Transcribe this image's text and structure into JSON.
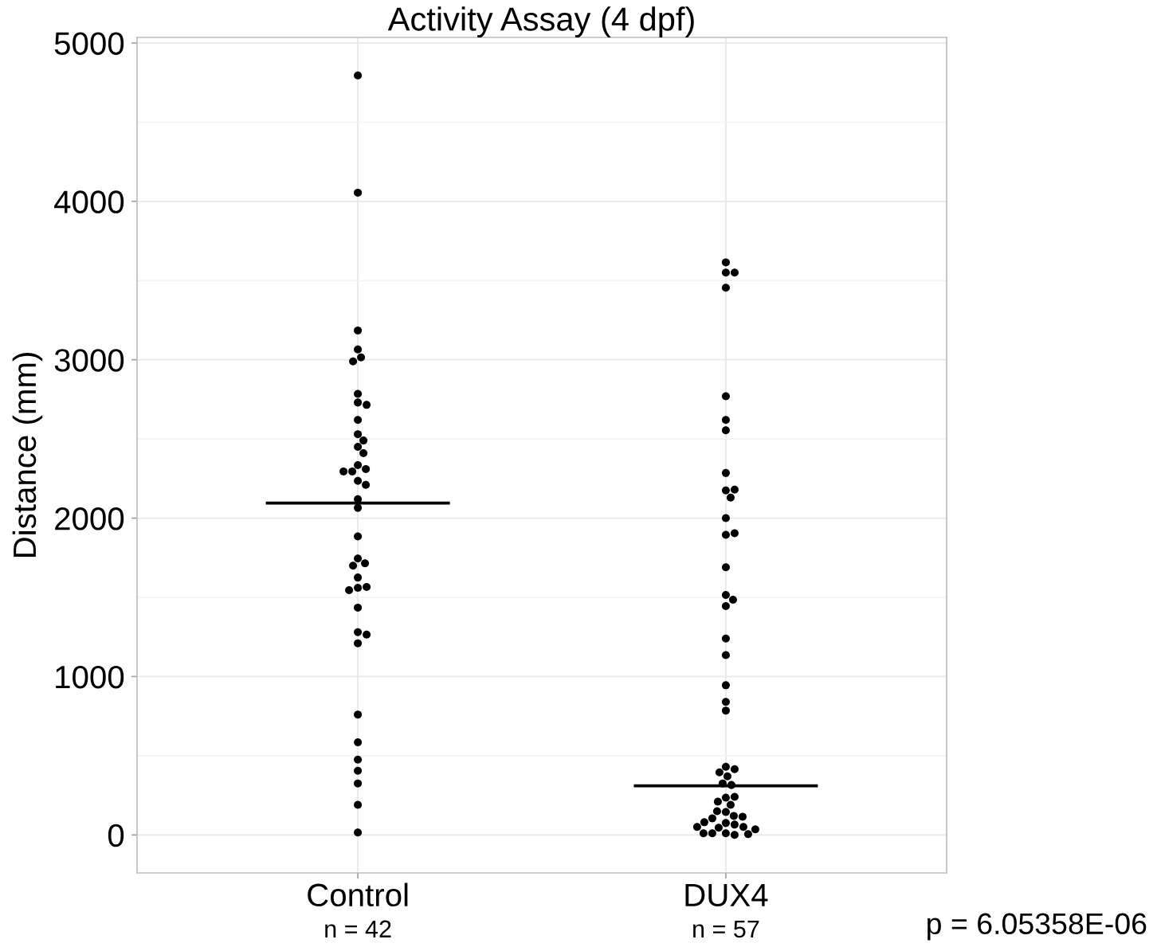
{
  "chart_data": {
    "type": "scatter",
    "title": "Activity Assay (4 dpf)",
    "ylabel": "Distance (mm)",
    "categories": [
      "Control",
      "DUX4"
    ],
    "ylim": [
      -240,
      5035
    ],
    "yticks": [
      0,
      {
        "value": 500,
        "label": null
      },
      1000,
      {
        "value": 1500,
        "label": null
      },
      2000,
      {
        "value": 2500,
        "label": null
      },
      3000,
      {
        "value": 3500,
        "label": null
      },
      4000,
      {
        "value": 4500,
        "label": null
      },
      5000
    ],
    "grid": true,
    "marker": "circle",
    "series": [
      {
        "color": "#000000",
        "x": [
          "Control",
          "Control",
          "Control",
          "Control",
          "Control",
          "Control",
          "Control",
          "Control",
          "Control",
          "Control",
          "Control",
          "Control",
          "Control",
          "Control",
          "Control",
          "Control",
          "Control",
          "Control",
          "Control",
          "Control",
          "Control",
          "Control",
          "Control",
          "Control",
          "Control",
          "Control",
          "Control",
          "Control",
          "Control",
          "Control",
          "Control",
          "Control",
          "Control",
          "Control",
          "Control",
          "Control",
          "Control",
          "Control",
          "Control",
          "Control",
          "Control"
        ],
        "values": [
          4795,
          4055,
          3185,
          3065,
          3015,
          2990,
          2785,
          2730,
          2715,
          2620,
          2530,
          2490,
          2450,
          2410,
          2335,
          2310,
          2295,
          2295,
          2235,
          2210,
          2120,
          2065,
          1885,
          1745,
          1715,
          1700,
          1625,
          1560,
          1565,
          1545,
          1435,
          1280,
          1265,
          1210,
          760,
          585,
          475,
          405,
          325,
          190,
          15
        ]
      },
      {
        "color": "#000000",
        "x": [
          "DUX4",
          "DUX4",
          "DUX4",
          "DUX4",
          "DUX4",
          "DUX4",
          "DUX4",
          "DUX4",
          "DUX4",
          "DUX4",
          "DUX4",
          "DUX4",
          "DUX4",
          "DUX4",
          "DUX4",
          "DUX4",
          "DUX4",
          "DUX4",
          "DUX4",
          "DUX4",
          "DUX4",
          "DUX4",
          "DUX4",
          "DUX4",
          "DUX4",
          "DUX4",
          "DUX4",
          "DUX4",
          "DUX4",
          "DUX4",
          "DUX4",
          "DUX4",
          "DUX4",
          "DUX4",
          "DUX4",
          "DUX4",
          "DUX4",
          "DUX4",
          "DUX4",
          "DUX4",
          "DUX4",
          "DUX4",
          "DUX4",
          "DUX4",
          "DUX4",
          "DUX4",
          "DUX4",
          "DUX4",
          "DUX4",
          "DUX4"
        ],
        "values": [
          3615,
          3550,
          3550,
          3455,
          2770,
          2620,
          2555,
          2285,
          2175,
          2180,
          2130,
          2000,
          1895,
          1905,
          1690,
          1515,
          1485,
          1445,
          1240,
          1135,
          945,
          840,
          785,
          430,
          415,
          395,
          370,
          325,
          315,
          235,
          240,
          210,
          190,
          145,
          150,
          120,
          105,
          115,
          75,
          80,
          65,
          45,
          50,
          10,
          0,
          10,
          10,
          5,
          35,
          50
        ]
      },
      {
        "type": "box",
        "color": "#000000",
        "boxes": [
          {
            "low": 2095,
            "q1": 2095,
            "median": 2095,
            "q3": 2095,
            "high": 2095
          },
          {
            "low": 310,
            "q1": 310,
            "median": 310,
            "q3": 310,
            "high": 310
          }
        ]
      }
    ],
    "annotations": [
      "n = 42",
      "n = 57",
      "p = 6.05358E-06"
    ]
  }
}
